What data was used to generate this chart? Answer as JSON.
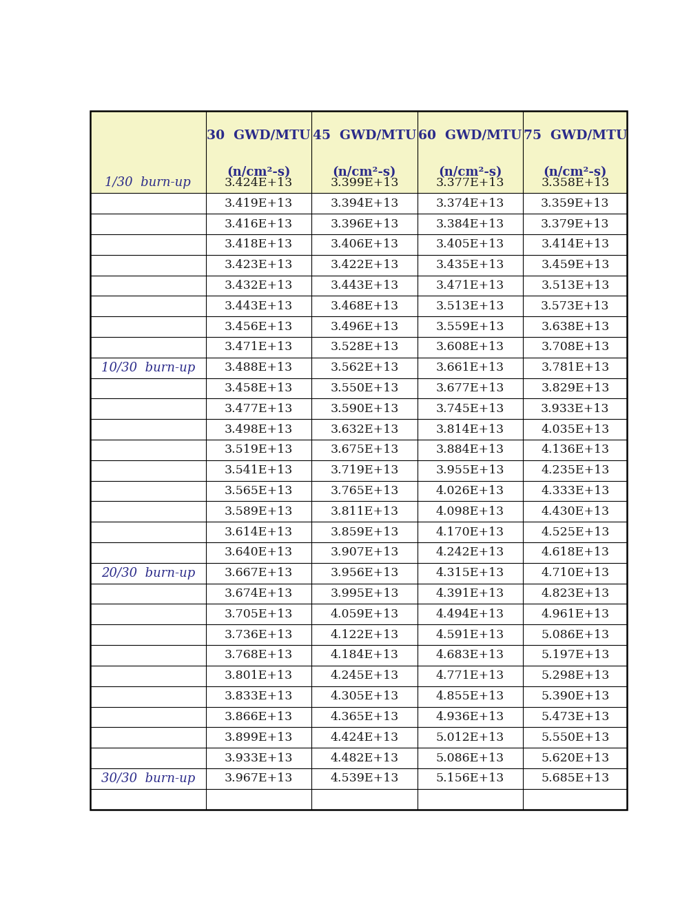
{
  "header_bg": "#f5f5c8",
  "header_text_color": "#2b2b8a",
  "cell_text_color": "#1a1a1a",
  "border_color": "#000000",
  "gwdmtu_labels": [
    "30  GWD/MTU",
    "45  GWD/MTU",
    "60  GWD/MTU",
    "75  GWD/MTU"
  ],
  "unit_label": "(n/cm²-s)",
  "table_data": [
    [
      "3.424E+13",
      "3.399E+13",
      "3.377E+13",
      "3.358E+13"
    ],
    [
      "3.419E+13",
      "3.394E+13",
      "3.374E+13",
      "3.359E+13"
    ],
    [
      "3.416E+13",
      "3.396E+13",
      "3.384E+13",
      "3.379E+13"
    ],
    [
      "3.418E+13",
      "3.406E+13",
      "3.405E+13",
      "3.414E+13"
    ],
    [
      "3.423E+13",
      "3.422E+13",
      "3.435E+13",
      "3.459E+13"
    ],
    [
      "3.432E+13",
      "3.443E+13",
      "3.471E+13",
      "3.513E+13"
    ],
    [
      "3.443E+13",
      "3.468E+13",
      "3.513E+13",
      "3.573E+13"
    ],
    [
      "3.456E+13",
      "3.496E+13",
      "3.559E+13",
      "3.638E+13"
    ],
    [
      "3.471E+13",
      "3.528E+13",
      "3.608E+13",
      "3.708E+13"
    ],
    [
      "3.488E+13",
      "3.562E+13",
      "3.661E+13",
      "3.781E+13"
    ],
    [
      "3.458E+13",
      "3.550E+13",
      "3.677E+13",
      "3.829E+13"
    ],
    [
      "3.477E+13",
      "3.590E+13",
      "3.745E+13",
      "3.933E+13"
    ],
    [
      "3.498E+13",
      "3.632E+13",
      "3.814E+13",
      "4.035E+13"
    ],
    [
      "3.519E+13",
      "3.675E+13",
      "3.884E+13",
      "4.136E+13"
    ],
    [
      "3.541E+13",
      "3.719E+13",
      "3.955E+13",
      "4.235E+13"
    ],
    [
      "3.565E+13",
      "3.765E+13",
      "4.026E+13",
      "4.333E+13"
    ],
    [
      "3.589E+13",
      "3.811E+13",
      "4.098E+13",
      "4.430E+13"
    ],
    [
      "3.614E+13",
      "3.859E+13",
      "4.170E+13",
      "4.525E+13"
    ],
    [
      "3.640E+13",
      "3.907E+13",
      "4.242E+13",
      "4.618E+13"
    ],
    [
      "3.667E+13",
      "3.956E+13",
      "4.315E+13",
      "4.710E+13"
    ],
    [
      "3.674E+13",
      "3.995E+13",
      "4.391E+13",
      "4.823E+13"
    ],
    [
      "3.705E+13",
      "4.059E+13",
      "4.494E+13",
      "4.961E+13"
    ],
    [
      "3.736E+13",
      "4.122E+13",
      "4.591E+13",
      "5.086E+13"
    ],
    [
      "3.768E+13",
      "4.184E+13",
      "4.683E+13",
      "5.197E+13"
    ],
    [
      "3.801E+13",
      "4.245E+13",
      "4.771E+13",
      "5.298E+13"
    ],
    [
      "3.833E+13",
      "4.305E+13",
      "4.855E+13",
      "5.390E+13"
    ],
    [
      "3.866E+13",
      "4.365E+13",
      "4.936E+13",
      "5.473E+13"
    ],
    [
      "3.899E+13",
      "4.424E+13",
      "5.012E+13",
      "5.550E+13"
    ],
    [
      "3.933E+13",
      "4.482E+13",
      "5.086E+13",
      "5.620E+13"
    ],
    [
      "3.967E+13",
      "4.539E+13",
      "5.156E+13",
      "5.685E+13"
    ]
  ],
  "section_rows": [
    0,
    9,
    19,
    29
  ],
  "section_labels": [
    "1/30  burn-up",
    "10/30  burn-up",
    "20/30  burn-up",
    "30/30  burn-up"
  ],
  "figsize": [
    10.16,
    13.22
  ],
  "dpi": 100,
  "header_fontsize": 13.5,
  "cell_fontsize": 12.5,
  "label_fontsize": 13
}
